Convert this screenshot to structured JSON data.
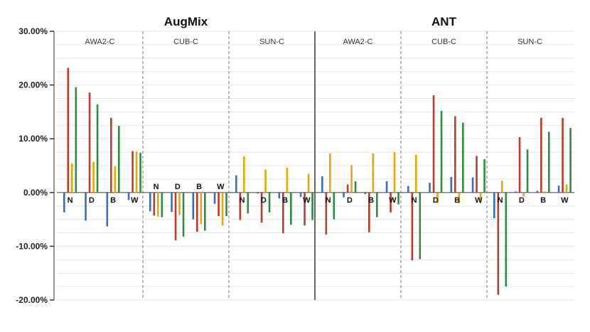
{
  "chart_data": {
    "type": "bar",
    "ylim": [
      -20,
      30
    ],
    "yticks": [
      30,
      20,
      10,
      0,
      -10,
      -20
    ],
    "ytick_labels": [
      "30.00%",
      "20.00%",
      "10.00%",
      "0.00%",
      "-10.00%",
      "-20.00%"
    ],
    "grid": true,
    "colors": [
      "#3c6bc4",
      "#c0392b",
      "#e8a800",
      "#2e8b3f"
    ],
    "panels": [
      {
        "method": "AugMix",
        "datasets": [
          {
            "name": "AWA2-C",
            "categories": [
              "N",
              "D",
              "B",
              "W"
            ],
            "values": [
              [
                -3.7,
                23.2,
                5.4,
                19.6
              ],
              [
                -5.2,
                18.6,
                5.7,
                16.4
              ],
              [
                -6.3,
                13.9,
                4.9,
                12.4
              ],
              [
                -1.4,
                7.7,
                7.6,
                7.4
              ]
            ]
          },
          {
            "name": "CUB-C",
            "categories": [
              "N",
              "D",
              "B",
              "W"
            ],
            "values": [
              [
                -3.5,
                -4.3,
                -4.5,
                -4.6
              ],
              [
                -3.6,
                -8.9,
                -4.2,
                -8.2
              ],
              [
                -5.0,
                -7.3,
                -5.9,
                -7.1
              ],
              [
                -2.1,
                -4.4,
                -6.1,
                -4.4
              ]
            ]
          },
          {
            "name": "SUN-C",
            "categories": [
              "N",
              "D",
              "B",
              "W"
            ],
            "values": [
              [
                3.2,
                -5.1,
                6.7,
                -3.9
              ],
              [
                -0.2,
                -5.6,
                4.3,
                -3.7
              ],
              [
                -1.1,
                -7.6,
                4.6,
                -6.0
              ],
              [
                -0.8,
                -6.1,
                3.5,
                -5.1
              ]
            ]
          }
        ]
      },
      {
        "method": "ANT",
        "datasets": [
          {
            "name": "AWA2-C",
            "categories": [
              "N",
              "D",
              "B",
              "W"
            ],
            "values": [
              [
                3.0,
                -7.8,
                7.3,
                -5.0
              ],
              [
                -0.9,
                1.5,
                5.1,
                2.1
              ],
              [
                -0.3,
                -7.4,
                7.3,
                -4.6
              ],
              [
                2.1,
                -3.7,
                7.5,
                -2.2
              ]
            ]
          },
          {
            "name": "CUB-C",
            "categories": [
              "N",
              "D",
              "B",
              "W"
            ],
            "values": [
              [
                1.2,
                -12.6,
                7.0,
                -12.4
              ],
              [
                1.8,
                18.1,
                -2.0,
                15.2
              ],
              [
                2.9,
                14.2,
                -2.0,
                13.0
              ],
              [
                2.8,
                6.8,
                -2.0,
                6.2
              ]
            ]
          },
          {
            "name": "SUN-C",
            "categories": [
              "N",
              "D",
              "B",
              "W"
            ],
            "values": [
              [
                -4.8,
                -19.0,
                2.2,
                -17.5
              ],
              [
                0.2,
                10.3,
                -0.8,
                8.0
              ],
              [
                0.3,
                13.9,
                0.2,
                11.3
              ],
              [
                1.3,
                13.9,
                1.5,
                12.0
              ]
            ]
          }
        ]
      }
    ]
  }
}
